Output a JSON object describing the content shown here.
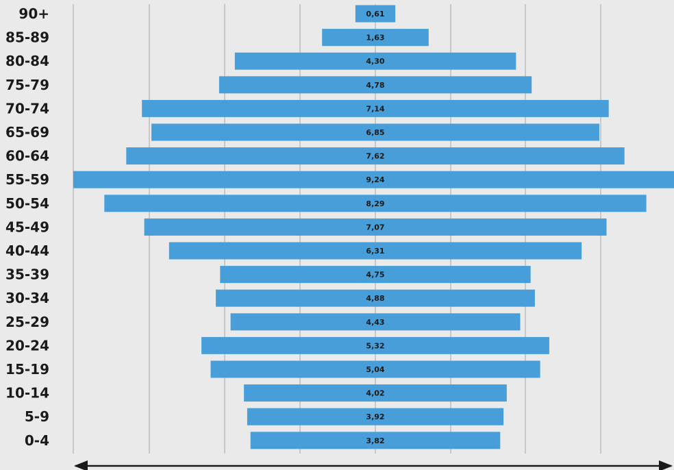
{
  "chart_data": {
    "type": "bar",
    "orientation": "horizontal",
    "layout": "centered-population-pyramid",
    "categories": [
      "90+",
      "85-89",
      "80-84",
      "75-79",
      "70-74",
      "65-69",
      "60-64",
      "55-59",
      "50-54",
      "45-49",
      "40-44",
      "35-39",
      "30-34",
      "25-29",
      "20-24",
      "15-19",
      "10-14",
      "5-9",
      "0-4"
    ],
    "values": [
      0.61,
      1.63,
      4.3,
      4.78,
      7.14,
      6.85,
      7.62,
      9.24,
      8.29,
      7.07,
      6.31,
      4.75,
      4.88,
      4.43,
      5.32,
      5.04,
      4.02,
      3.92,
      3.82
    ],
    "value_labels": [
      "0,61",
      "1,63",
      "4,30",
      "4,78",
      "7,14",
      "6,85",
      "7,62",
      "9,24",
      "8,29",
      "7,07",
      "6,31",
      "4,75",
      "4,88",
      "4,43",
      "5,32",
      "5,04",
      "4,02",
      "3,92",
      "3,82"
    ],
    "title": "",
    "xlabel": "",
    "ylabel": "",
    "xlim": [
      0,
      9.24
    ],
    "grid": true,
    "axis_arrow": "double-headed",
    "colors": {
      "bar": "#479ed8",
      "background": "#eaeaea",
      "grid": "#c8c8c8",
      "text": "#1a1a1a"
    }
  }
}
